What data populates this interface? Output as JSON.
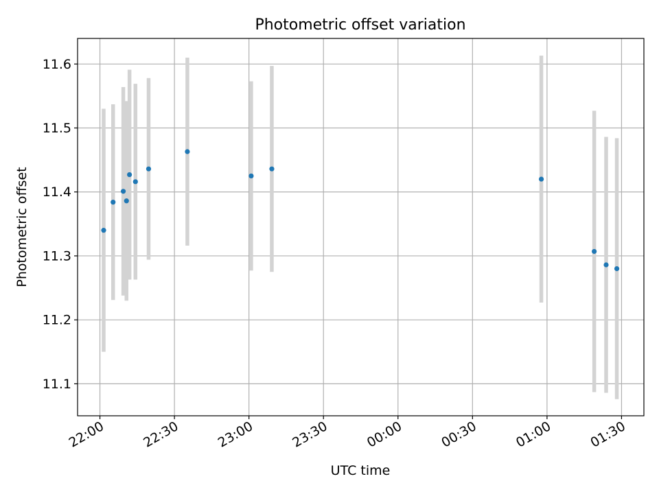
{
  "chart_data": {
    "type": "scatter",
    "title": "Photometric offset variation",
    "xlabel": "UTC time",
    "ylabel": "Photometric offset",
    "x_start": "22:00",
    "x_tick_labels": [
      "22:00",
      "22:30",
      "23:00",
      "23:30",
      "00:00",
      "00:30",
      "01:00",
      "01:30"
    ],
    "y_ticks": [
      11.1,
      11.2,
      11.3,
      11.4,
      11.5,
      11.6
    ],
    "xlim": [
      "21:51",
      "01:39"
    ],
    "ylim": [
      11.05,
      11.64
    ],
    "grid": true,
    "series": [
      {
        "points": [
          {
            "t": "22:01.5",
            "y": 11.34,
            "err": 0.19
          },
          {
            "t": "22:05.3",
            "y": 11.384,
            "err": 0.153
          },
          {
            "t": "22:09.4",
            "y": 11.401,
            "err": 0.163
          },
          {
            "t": "22:10.7",
            "y": 11.386,
            "err": 0.156
          },
          {
            "t": "22:11.9",
            "y": 11.427,
            "err": 0.164
          },
          {
            "t": "22:14.3",
            "y": 11.416,
            "err": 0.153
          },
          {
            "t": "22:19.6",
            "y": 11.436,
            "err": 0.142
          },
          {
            "t": "22:35.2",
            "y": 11.463,
            "err": 0.147
          },
          {
            "t": "23:00.9",
            "y": 11.425,
            "err": 0.148
          },
          {
            "t": "23:09.2",
            "y": 11.436,
            "err": 0.161
          },
          {
            "t": "00:57.7",
            "y": 11.42,
            "err": 0.193
          },
          {
            "t": "01:19.0",
            "y": 11.307,
            "err": 0.22
          },
          {
            "t": "01:23.8",
            "y": 11.286,
            "err": 0.2
          },
          {
            "t": "01:28.1",
            "y": 11.28,
            "err": 0.204
          }
        ]
      }
    ],
    "colors": {
      "point": "#1f77b4",
      "errorbar": "#d3d3d3",
      "grid": "#b0b0b0"
    }
  }
}
